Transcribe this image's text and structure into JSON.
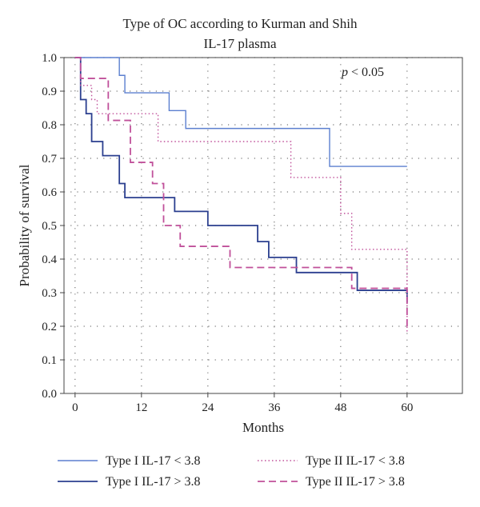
{
  "chart_data": {
    "type": "line",
    "title": "Type of OC according to Kurman and Shih",
    "subtitle": "IL-17 plasma",
    "xlabel": "Months",
    "ylabel": "Probability of survival",
    "xlim": [
      -2,
      70
    ],
    "ylim": [
      0,
      1.0
    ],
    "xticks": [
      0,
      12,
      24,
      36,
      48,
      60
    ],
    "yticks": [
      0.0,
      0.1,
      0.2,
      0.3,
      0.4,
      0.5,
      0.6,
      0.7,
      0.8,
      0.9,
      1.0
    ],
    "xtick_labels": [
      "0",
      "12",
      "24",
      "36",
      "48",
      "60"
    ],
    "ytick_labels": [
      "0.0",
      "0.1",
      "0.2",
      "0.3",
      "0.4",
      "0.5",
      "0.6",
      "0.7",
      "0.8",
      "0.9",
      "1.0"
    ],
    "grid": true,
    "annotation": {
      "p_symbol": "p",
      "p_rest": " < 0.05",
      "x": 52,
      "y": 0.945
    },
    "legend_position": "bottom",
    "series": [
      {
        "name": "Type I IL-17 < 3.8",
        "color": "#5b7fcf",
        "style": "solid",
        "width": 1.4,
        "points": [
          [
            0,
            1.0
          ],
          [
            8,
            1.0
          ],
          [
            8,
            0.947
          ],
          [
            9,
            0.947
          ],
          [
            9,
            0.895
          ],
          [
            17,
            0.895
          ],
          [
            17,
            0.842
          ],
          [
            20,
            0.842
          ],
          [
            20,
            0.789
          ],
          [
            46,
            0.789
          ],
          [
            46,
            0.676
          ],
          [
            60,
            0.676
          ]
        ]
      },
      {
        "name": "Type I IL-17 > 3.8",
        "color": "#2b3f8f",
        "style": "solid",
        "width": 1.8,
        "points": [
          [
            0,
            1.0
          ],
          [
            1,
            1.0
          ],
          [
            1,
            0.875
          ],
          [
            2,
            0.875
          ],
          [
            2,
            0.833
          ],
          [
            3,
            0.833
          ],
          [
            3,
            0.75
          ],
          [
            5,
            0.75
          ],
          [
            5,
            0.708
          ],
          [
            8,
            0.708
          ],
          [
            8,
            0.625
          ],
          [
            9,
            0.625
          ],
          [
            9,
            0.583
          ],
          [
            18,
            0.583
          ],
          [
            18,
            0.542
          ],
          [
            24,
            0.542
          ],
          [
            24,
            0.5
          ],
          [
            33,
            0.5
          ],
          [
            33,
            0.452
          ],
          [
            35,
            0.452
          ],
          [
            35,
            0.405
          ],
          [
            40,
            0.405
          ],
          [
            40,
            0.36
          ],
          [
            51,
            0.36
          ],
          [
            51,
            0.307
          ],
          [
            60,
            0.307
          ],
          [
            60,
            0.27
          ]
        ]
      },
      {
        "name": "Type II IL-17 < 3.8",
        "color": "#c0509a",
        "style": "dotted",
        "width": 1.4,
        "points": [
          [
            0,
            1.0
          ],
          [
            1,
            1.0
          ],
          [
            1,
            0.917
          ],
          [
            3,
            0.917
          ],
          [
            3,
            0.875
          ],
          [
            4,
            0.875
          ],
          [
            4,
            0.833
          ],
          [
            15,
            0.833
          ],
          [
            15,
            0.75
          ],
          [
            39,
            0.75
          ],
          [
            39,
            0.643
          ],
          [
            48,
            0.643
          ],
          [
            48,
            0.536
          ],
          [
            50,
            0.536
          ],
          [
            50,
            0.429
          ],
          [
            60,
            0.429
          ],
          [
            60,
            0.18
          ]
        ]
      },
      {
        "name": "Type II IL-17 > 3.8",
        "color": "#c0509a",
        "style": "dashed",
        "width": 1.8,
        "points": [
          [
            0,
            1.0
          ],
          [
            1,
            1.0
          ],
          [
            1,
            0.938
          ],
          [
            6,
            0.938
          ],
          [
            6,
            0.813
          ],
          [
            10,
            0.813
          ],
          [
            10,
            0.688
          ],
          [
            14,
            0.688
          ],
          [
            14,
            0.625
          ],
          [
            16,
            0.625
          ],
          [
            16,
            0.5
          ],
          [
            19,
            0.5
          ],
          [
            19,
            0.438
          ],
          [
            28,
            0.438
          ],
          [
            28,
            0.375
          ],
          [
            50,
            0.375
          ],
          [
            50,
            0.313
          ],
          [
            60,
            0.313
          ],
          [
            60,
            0.19
          ]
        ]
      }
    ]
  }
}
